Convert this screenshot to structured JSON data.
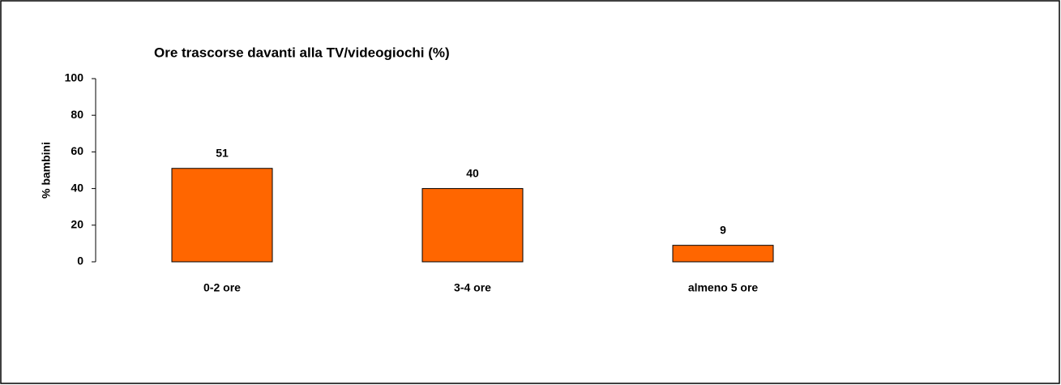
{
  "chart_data": {
    "type": "bar",
    "title": "Ore trascorse davanti alla TV/videogiochi (%)",
    "y_label": "% bambini",
    "categories": [
      "0-2 ore",
      "3-4 ore",
      "almeno 5 ore"
    ],
    "values": [
      51,
      40,
      9
    ],
    "color": "#ff6600",
    "ylim": [
      0,
      100
    ],
    "yticks": [
      0,
      20,
      40,
      60,
      80,
      100
    ],
    "grid": false
  }
}
